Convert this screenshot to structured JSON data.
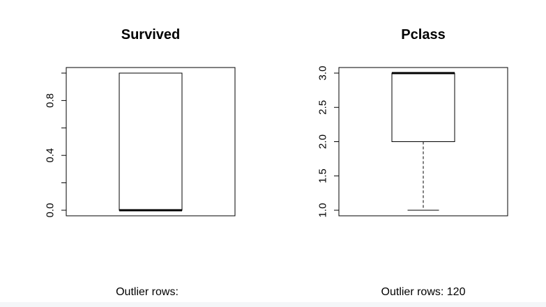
{
  "chart_data": [
    {
      "type": "box",
      "title": "Survived",
      "ylim": [
        0.0,
        1.0
      ],
      "y_ticks": [
        "0.0",
        "0.4",
        "0.8"
      ],
      "y_tick_values": [
        0.0,
        0.4,
        0.8
      ],
      "minor_ticks": [
        0.0,
        0.2,
        0.4,
        0.6,
        0.8,
        1.0
      ],
      "box": {
        "whisker_low": 0.0,
        "q1": 0.0,
        "median": 0.0,
        "q3": 1.0,
        "whisker_high": 1.0
      },
      "outliers": [],
      "caption": "Outlier rows:"
    },
    {
      "type": "box",
      "title": "Pclass",
      "ylim": [
        1.0,
        3.0
      ],
      "y_ticks": [
        "1.0",
        "1.5",
        "2.0",
        "2.5",
        "3.0"
      ],
      "y_tick_values": [
        1.0,
        1.5,
        2.0,
        2.5,
        3.0
      ],
      "minor_ticks": [],
      "box": {
        "whisker_low": 1.0,
        "q1": 2.0,
        "median": 3.0,
        "q3": 3.0,
        "whisker_high": 3.0
      },
      "outliers": [],
      "caption": "Outlier rows:  120"
    }
  ]
}
